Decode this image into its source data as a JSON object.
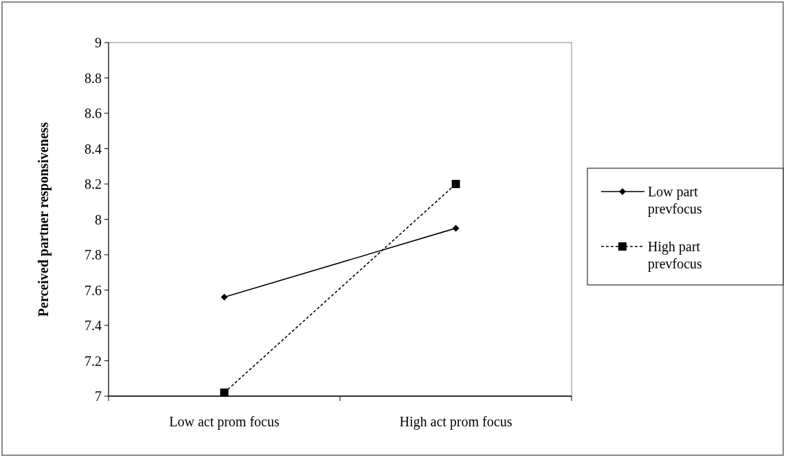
{
  "chart_data": {
    "type": "line",
    "ylabel": "Perceived partner responsiveness",
    "categories": [
      "Low act prom focus",
      "High act prom focus"
    ],
    "series": [
      {
        "name": "Low part prevfocus",
        "color": "#000000",
        "values": [
          7.56,
          7.95
        ],
        "marker": "diamond",
        "line_style": "solid"
      },
      {
        "name": "High part prevfocus",
        "color": "#000000",
        "values": [
          7.02,
          8.2
        ],
        "marker": "square",
        "line_style": "dashed"
      }
    ],
    "ylim": [
      7,
      9
    ],
    "yticks": [
      7,
      7.2,
      7.4,
      7.6,
      7.8,
      8,
      8.2,
      8.4,
      8.6,
      8.8,
      9
    ],
    "grid": false,
    "legend": "right"
  }
}
